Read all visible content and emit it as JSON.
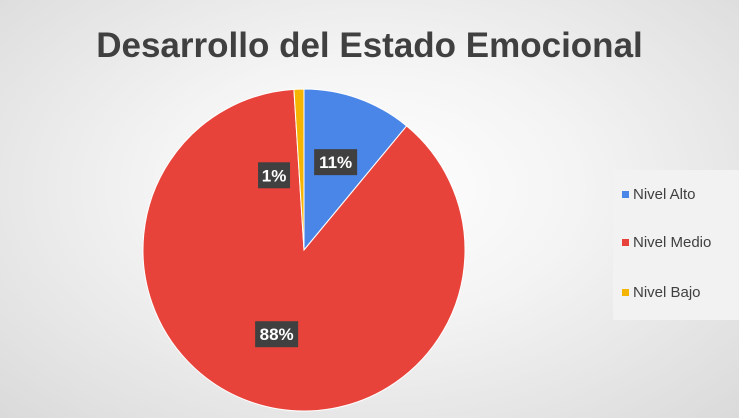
{
  "chart_data": {
    "type": "pie",
    "title": "Desarrollo del Estado Emocional",
    "categories": [
      "Nivel Alto",
      "Nivel Medio",
      "Nivel Bajo"
    ],
    "values": [
      11,
      88,
      1
    ],
    "labels": [
      "11%",
      "88%",
      "1%"
    ],
    "colors": [
      "#4a86e8",
      "#e8433a",
      "#f4b400"
    ],
    "legend_position": "right"
  }
}
